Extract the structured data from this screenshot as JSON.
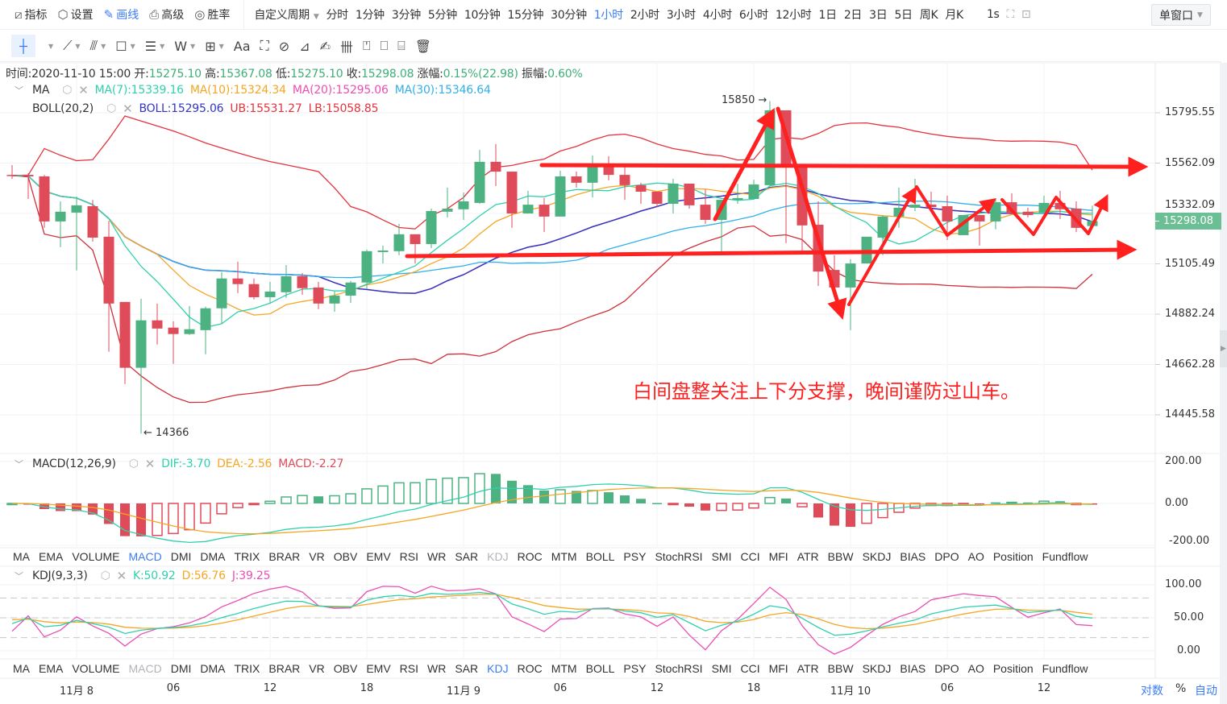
{
  "toolbar": {
    "left": [
      {
        "icon": "chart-line-icon",
        "glyph": "⧄",
        "label": "指标"
      },
      {
        "icon": "settings-hexagon-icon",
        "glyph": "⬡",
        "label": "设置"
      },
      {
        "icon": "pencil-icon",
        "glyph": "✎",
        "label": "画线",
        "active": true
      },
      {
        "icon": "printer-icon",
        "glyph": "⎙",
        "label": "高级"
      },
      {
        "icon": "gauge-icon",
        "glyph": "◎",
        "label": "胜率"
      }
    ],
    "custom_period": "自定义周期",
    "periods": [
      "分时",
      "1分钟",
      "3分钟",
      "5分钟",
      "10分钟",
      "15分钟",
      "30分钟",
      "1小时",
      "2小时",
      "3小时",
      "4小时",
      "6小时",
      "12小时",
      "1日",
      "2日",
      "3日",
      "5日",
      "周K",
      "月K"
    ],
    "active_period": "1小时",
    "refresh": "1s",
    "window_mode": "单窗口"
  },
  "draw_tools": [
    {
      "icon": "crosshair-icon",
      "glyph": "┼",
      "dropdown": true,
      "active": true
    },
    {
      "icon": "trend-line-icon",
      "glyph": "⟋",
      "dropdown": true
    },
    {
      "icon": "parallel-channel-icon",
      "glyph": "⫻",
      "dropdown": true
    },
    {
      "icon": "rectangle-icon",
      "glyph": "☐",
      "dropdown": true
    },
    {
      "icon": "fibonacci-icon",
      "glyph": "☰",
      "dropdown": true
    },
    {
      "icon": "wave-icon",
      "glyph": "W",
      "dropdown": true
    },
    {
      "icon": "frame-icon",
      "glyph": "⊞",
      "dropdown": true
    },
    {
      "icon": "text-icon",
      "glyph": "Aa"
    },
    {
      "icon": "measure-icon",
      "glyph": "⛶"
    },
    {
      "icon": "magnet-icon",
      "glyph": "⊘"
    },
    {
      "icon": "ruler-icon",
      "glyph": "⊿"
    },
    {
      "icon": "brush-icon",
      "glyph": "✍"
    },
    {
      "icon": "lock-drawings-icon",
      "glyph": "卌"
    },
    {
      "icon": "hide-drawings-icon",
      "glyph": "⍞"
    },
    {
      "icon": "bookmark-icon",
      "glyph": "⎕"
    },
    {
      "icon": "template-icon",
      "glyph": "⌸"
    },
    {
      "icon": "trash-icon",
      "glyph": "🗑"
    }
  ],
  "info": {
    "time_label": "时间:",
    "time": "2020-11-10 15:00",
    "open_label": "开:",
    "open": "15275.10",
    "high_label": "高:",
    "high": "15367.08",
    "low_label": "低:",
    "low": "15275.10",
    "close_label": "收:",
    "close": "15298.08",
    "change_label": "涨幅:",
    "change": "0.15%(22.98)",
    "amp_label": "振幅:",
    "amp": "0.60%"
  },
  "legend": {
    "ma": {
      "name": "MA",
      "items": [
        {
          "text": "MA(7):15339.16",
          "color": "#2fd1ad"
        },
        {
          "text": "MA(10):15324.34",
          "color": "#f5a623"
        },
        {
          "text": "MA(20):15295.06",
          "color": "#ea4fb4"
        },
        {
          "text": "MA(30):15346.64",
          "color": "#30b0ea"
        }
      ]
    },
    "boll": {
      "name": "BOLL(20,2)",
      "items": [
        {
          "text": "BOLL:15295.06",
          "color": "#3535c0"
        },
        {
          "text": "UB:15531.27",
          "color": "#e5323c"
        },
        {
          "text": "LB:15058.85",
          "color": "#e5323c"
        }
      ]
    }
  },
  "macd": {
    "name": "MACD(12,26,9)",
    "items": [
      {
        "text": "DIF:-3.70",
        "color": "#2fd1ad"
      },
      {
        "text": "DEA:-2.56",
        "color": "#f5a623"
      },
      {
        "text": "MACD:-2.27",
        "color": "#e04b5a"
      }
    ],
    "ticks": [
      200,
      0,
      -200
    ],
    "tick_labels": [
      "200.00",
      "0.00",
      "-200.00"
    ]
  },
  "kdj": {
    "name": "KDJ(9,3,3)",
    "items": [
      {
        "text": "K:50.92",
        "color": "#2fd1ad"
      },
      {
        "text": "D:56.76",
        "color": "#f5a623"
      },
      {
        "text": "J:39.25",
        "color": "#ea4fb4"
      }
    ],
    "ticks": [
      100,
      50,
      0
    ],
    "tick_labels": [
      "100.00",
      "50.00",
      "0.00"
    ],
    "guides": [
      80,
      50,
      20
    ]
  },
  "indicator_tabs": [
    "MA",
    "EMA",
    "VOLUME",
    "MACD",
    "DMI",
    "DMA",
    "TRIX",
    "BRAR",
    "VR",
    "OBV",
    "EMV",
    "RSI",
    "WR",
    "SAR",
    "KDJ",
    "ROC",
    "MTM",
    "BOLL",
    "PSY",
    "StochRSI",
    "SMI",
    "CCI",
    "MFI",
    "ATR",
    "BBW",
    "SKDJ",
    "BIAS",
    "DPO",
    "AO",
    "Position",
    "Fundflow"
  ],
  "tab_rows": [
    {
      "active": "MACD",
      "dimmed": "KDJ"
    },
    {
      "active": "KDJ",
      "dimmed": "MACD"
    }
  ],
  "bottom_right": {
    "log": "对数",
    "percent": "%",
    "auto": "自动"
  },
  "annotation": "白间盘整关注上下分支撑，晚间谨防过山车。",
  "colors": {
    "up": "#4db281",
    "down": "#e04b5a",
    "ma7": "#2fd1ad",
    "ma10": "#f5a623",
    "ma20": "#ea4fb4",
    "ma30": "#30b0ea",
    "boll_mid": "#3535c0",
    "boll_band": "#e5323c",
    "accent": "#3b7cf5",
    "annotation": "#ff2020",
    "last_price": "#6cbf95"
  },
  "chart_data": {
    "type": "candlestick",
    "interval": "1小时",
    "fields": [
      "open",
      "close",
      "high",
      "low"
    ],
    "candles": [
      [
        15508,
        15505,
        15553,
        15490
      ],
      [
        15508,
        15501,
        15516,
        15398
      ],
      [
        15501,
        15296,
        15508,
        15267
      ],
      [
        15296,
        15340,
        15387,
        15180
      ],
      [
        15336,
        15369,
        15409,
        15076
      ],
      [
        15365,
        15223,
        15394,
        15205
      ],
      [
        15227,
        14929,
        15299,
        14718
      ],
      [
        14936,
        14648,
        14936,
        14578
      ],
      [
        14648,
        14855,
        14950,
        14366
      ],
      [
        14855,
        14819,
        14929,
        14749
      ],
      [
        14823,
        14795,
        14851,
        14665
      ],
      [
        14795,
        14816,
        14918,
        14791
      ],
      [
        14812,
        14908,
        14915,
        14707
      ],
      [
        14908,
        15040,
        15068,
        14840
      ],
      [
        15040,
        15015,
        15115,
        14975
      ],
      [
        15015,
        14957,
        15040,
        14947
      ],
      [
        14957,
        14982,
        15025,
        14929
      ],
      [
        14979,
        15050,
        15100,
        14954
      ],
      [
        15050,
        14997,
        15064,
        14968
      ],
      [
        15000,
        14929,
        15025,
        14904
      ],
      [
        14929,
        14964,
        14982,
        14893
      ],
      [
        14964,
        15022,
        15029,
        14932
      ],
      [
        15022,
        15162,
        15169,
        14993
      ],
      [
        15158,
        15165,
        15187,
        15107
      ],
      [
        15162,
        15238,
        15285,
        15144
      ],
      [
        15238,
        15194,
        15238,
        15107
      ],
      [
        15194,
        15343,
        15354,
        15176
      ],
      [
        15340,
        15354,
        15450,
        15314
      ],
      [
        15351,
        15387,
        15428,
        15303
      ],
      [
        15380,
        15568,
        15623,
        15376
      ],
      [
        15568,
        15523,
        15650,
        15457
      ],
      [
        15523,
        15332,
        15523,
        15267
      ],
      [
        15332,
        15372,
        15435,
        15332
      ],
      [
        15372,
        15318,
        15402,
        15248
      ],
      [
        15318,
        15501,
        15527,
        15318
      ],
      [
        15501,
        15472,
        15523,
        15450
      ],
      [
        15472,
        15545,
        15597,
        15405
      ],
      [
        15545,
        15508,
        15594,
        15483
      ],
      [
        15508,
        15461,
        15560,
        15394
      ],
      [
        15461,
        15431,
        15472,
        15376
      ],
      [
        15431,
        15376,
        15431,
        15361
      ],
      [
        15376,
        15468,
        15490,
        15332
      ],
      [
        15468,
        15369,
        15468,
        15354
      ],
      [
        15372,
        15303,
        15442,
        15285
      ],
      [
        15303,
        15394,
        15394,
        15144
      ],
      [
        15394,
        15402,
        15468,
        15376
      ],
      [
        15398,
        15464,
        15486,
        15398
      ],
      [
        15461,
        15807,
        15850,
        15461
      ],
      [
        15807,
        15545,
        15807,
        15198
      ],
      [
        15545,
        15278,
        15545,
        15162
      ],
      [
        15281,
        15071,
        15387,
        15007
      ],
      [
        15078,
        15000,
        15144,
        15000
      ],
      [
        15000,
        15107,
        15126,
        14812
      ],
      [
        15107,
        15227,
        15227,
        15107
      ],
      [
        15223,
        15318,
        15325,
        15144
      ],
      [
        15318,
        15358,
        15450,
        15267
      ],
      [
        15358,
        15372,
        15490,
        15343
      ],
      [
        15372,
        15361,
        15431,
        15343
      ],
      [
        15365,
        15296,
        15413,
        15212
      ],
      [
        15234,
        15325,
        15325,
        15234
      ],
      [
        15325,
        15296,
        15325,
        15187
      ],
      [
        15296,
        15383,
        15398,
        15260
      ],
      [
        15383,
        15332,
        15424,
        15332
      ],
      [
        15340,
        15325,
        15358,
        15314
      ],
      [
        15336,
        15380,
        15413,
        15336
      ],
      [
        15380,
        15351,
        15435,
        15307
      ],
      [
        15354,
        15267,
        15387,
        15248
      ],
      [
        15275.1,
        15298.08,
        15367.08,
        15275.1
      ]
    ],
    "x_ticks": [
      {
        "label": "11月 8",
        "candle": 4
      },
      {
        "label": "06",
        "candle": 10
      },
      {
        "label": "12",
        "candle": 16
      },
      {
        "label": "18",
        "candle": 22
      },
      {
        "label": "11月 9",
        "candle": 28
      },
      {
        "label": "06",
        "candle": 34
      },
      {
        "label": "12",
        "candle": 40
      },
      {
        "label": "18",
        "candle": 46
      },
      {
        "label": "11月 10",
        "candle": 52
      },
      {
        "label": "06",
        "candle": 58
      },
      {
        "label": "12",
        "candle": 64
      }
    ],
    "price_axis": {
      "scale": "log",
      "range": [
        14445.58,
        15795.55
      ],
      "ticks": [
        "15795.55",
        "15562.09",
        "15332.09",
        "15105.49",
        "14882.24",
        "14662.28",
        "14445.58"
      ]
    },
    "last_price": "15298.08",
    "max_label": {
      "text": "15850 →",
      "candle": 47
    },
    "min_label": {
      "text": "← 14366",
      "candle": 8
    },
    "indicators": {
      "ma": [
        7,
        10,
        20,
        30
      ],
      "boll": [
        20,
        2
      ],
      "macd": [
        12,
        26,
        9
      ],
      "kdj": [
        9,
        3,
        3
      ]
    },
    "grid": true
  }
}
